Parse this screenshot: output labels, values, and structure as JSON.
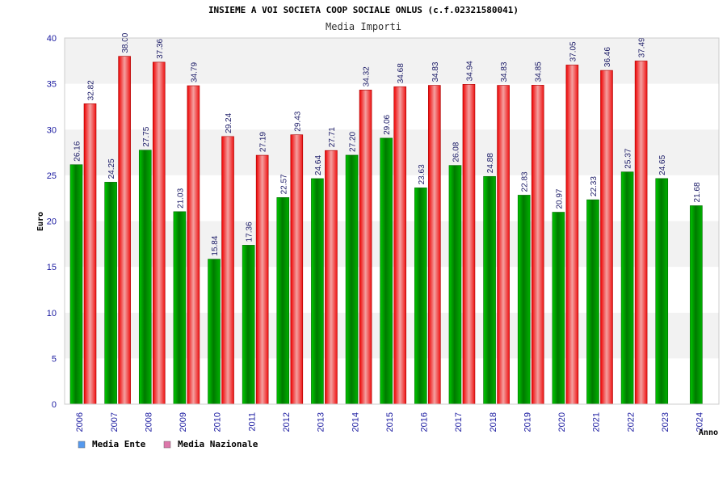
{
  "chart_data": {
    "type": "bar",
    "title": "INSIEME A VOI SOCIETA COOP SOCIALE ONLUS (c.f.02321580041)",
    "subtitle": "Media Importi",
    "ylabel": "Euro",
    "xlabel": "Anno",
    "ylim": [
      0,
      40
    ],
    "yticks": [
      "0",
      "5",
      "10",
      "15",
      "20",
      "25",
      "30",
      "35",
      "40"
    ],
    "grid": "horizontal bands",
    "legend_position": "bottom-left",
    "categories": [
      "2006",
      "2007",
      "2008",
      "2009",
      "2010",
      "2011",
      "2012",
      "2013",
      "2014",
      "2015",
      "2016",
      "2017",
      "2018",
      "2019",
      "2020",
      "2021",
      "2022",
      "2023",
      "2024"
    ],
    "series": [
      {
        "name": "Media Ente",
        "legend_color": "#5599ee",
        "bar_color": "#00a000",
        "values": [
          26.16,
          24.25,
          27.75,
          21.03,
          15.84,
          17.36,
          22.57,
          24.64,
          27.2,
          29.06,
          23.63,
          26.08,
          24.88,
          22.83,
          20.97,
          22.33,
          25.37,
          24.65,
          21.68
        ],
        "labels": [
          "26.16",
          "24.25",
          "27.75",
          "21.03",
          "15.84",
          "17.36",
          "22.57",
          "24.64",
          "27.20",
          "29.06",
          "23.63",
          "26.08",
          "24.88",
          "22.83",
          "20.97",
          "22.33",
          "25.37",
          "24.65",
          "21.68"
        ]
      },
      {
        "name": "Media Nazionale",
        "legend_color": "#dd77aa",
        "bar_color": "#ee2222",
        "values": [
          32.82,
          38.0,
          37.36,
          34.79,
          29.24,
          27.19,
          29.43,
          27.71,
          34.32,
          34.68,
          34.83,
          34.94,
          34.83,
          34.85,
          37.05,
          36.46,
          37.49,
          null,
          null
        ],
        "labels": [
          "32.82",
          "38.00",
          "37.36",
          "34.79",
          "29.24",
          "27.19",
          "29.43",
          "27.71",
          "34.32",
          "34.68",
          "34.83",
          "34.94",
          "34.83",
          "34.85",
          "37.05",
          "36.46",
          "37.49",
          null,
          null
        ]
      }
    ]
  }
}
